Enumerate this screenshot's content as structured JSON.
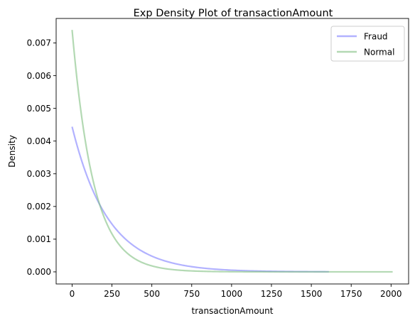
{
  "chart_data": {
    "type": "line",
    "title": "Exp Density Plot of transactionAmount",
    "xlabel": "transactionAmount",
    "ylabel": "Density",
    "xlim": [
      -100,
      2110
    ],
    "ylim": [
      -0.00037,
      0.00775
    ],
    "x_ticks": [
      0,
      250,
      500,
      750,
      1000,
      1250,
      1500,
      1750,
      2000
    ],
    "x_tick_labels": [
      "0",
      "250",
      "500",
      "750",
      "1000",
      "1250",
      "1500",
      "1750",
      "2000"
    ],
    "y_ticks": [
      0.0,
      0.001,
      0.002,
      0.003,
      0.004,
      0.005,
      0.006,
      0.007
    ],
    "y_tick_labels": [
      "0.000",
      "0.001",
      "0.002",
      "0.003",
      "0.004",
      "0.005",
      "0.006",
      "0.007"
    ],
    "grid": false,
    "legend_position": "top-right",
    "series": [
      {
        "name": "Fraud",
        "color": "#7f7fff",
        "distribution": "exponential",
        "x_start": 0,
        "x_end": 1610,
        "density_at_zero": 0.00444,
        "scale": 225
      },
      {
        "name": "Normal",
        "color": "#80c080",
        "distribution": "exponential",
        "x_start": 0,
        "x_end": 2010,
        "density_at_zero": 0.0074,
        "scale": 135
      }
    ]
  }
}
